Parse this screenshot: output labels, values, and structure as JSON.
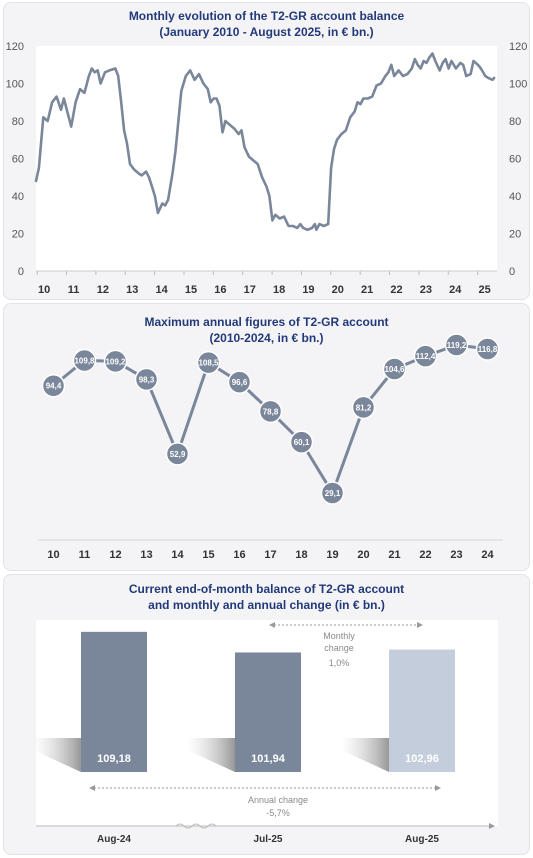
{
  "charts": {
    "monthly": {
      "title_line1": "Monthly evolution of the T2-GR account balance",
      "title_line2": "(January 2010 - August 2025,  in € bn.)"
    },
    "annual": {
      "title_line1": "Maximum annual figures of T2-GR account",
      "title_line2": "(2010-2024,  in € bn.)"
    },
    "current": {
      "title_line1": "Current end-of-month balance of T2-GR account",
      "title_line2": "and monthly and annual change (in € bn.)",
      "monthly_change_label_1": "Monthly",
      "monthly_change_label_2": "change",
      "monthly_change_value": "1,0%",
      "annual_change_label": "Annual change",
      "annual_change_value": "-5,7%"
    }
  },
  "colors": {
    "line": "#7a8699",
    "bar_dark": "#7a8699",
    "bar_light": "#c4cddc",
    "title": "#233a7a",
    "axis_text": "#555555"
  },
  "chart_data": [
    {
      "type": "line",
      "title": "Monthly evolution of the T2-GR account balance (January 2010 - August 2025,  in € bn.)",
      "y_ticks": [
        "0",
        "20",
        "40",
        "60",
        "80",
        "100",
        "120"
      ],
      "x_tick_labels": [
        "10",
        "11",
        "12",
        "13",
        "14",
        "15",
        "16",
        "17",
        "18",
        "19",
        "20",
        "21",
        "22",
        "23",
        "24",
        "25"
      ],
      "ylim": [
        0,
        120
      ],
      "x_unit": "year (2010 = 10)",
      "points": [
        [
          10.0,
          48
        ],
        [
          10.1,
          55
        ],
        [
          10.25,
          82
        ],
        [
          10.4,
          80
        ],
        [
          10.55,
          90
        ],
        [
          10.7,
          93
        ],
        [
          10.85,
          86
        ],
        [
          10.95,
          92
        ],
        [
          11.05,
          86
        ],
        [
          11.2,
          77
        ],
        [
          11.35,
          90
        ],
        [
          11.5,
          97
        ],
        [
          11.65,
          95
        ],
        [
          11.8,
          104
        ],
        [
          11.9,
          108
        ],
        [
          12.0,
          106
        ],
        [
          12.1,
          107
        ],
        [
          12.2,
          100
        ],
        [
          12.35,
          106
        ],
        [
          12.5,
          107
        ],
        [
          12.7,
          108
        ],
        [
          12.8,
          104
        ],
        [
          12.9,
          90
        ],
        [
          13.0,
          75
        ],
        [
          13.1,
          68
        ],
        [
          13.2,
          57
        ],
        [
          13.35,
          54
        ],
        [
          13.5,
          52
        ],
        [
          13.6,
          51
        ],
        [
          13.75,
          53
        ],
        [
          13.85,
          50
        ],
        [
          13.95,
          45
        ],
        [
          14.05,
          40
        ],
        [
          14.15,
          31
        ],
        [
          14.3,
          36
        ],
        [
          14.4,
          35
        ],
        [
          14.5,
          38
        ],
        [
          14.65,
          52
        ],
        [
          14.75,
          64
        ],
        [
          14.85,
          80
        ],
        [
          14.95,
          96
        ],
        [
          15.1,
          104
        ],
        [
          15.25,
          107
        ],
        [
          15.4,
          102
        ],
        [
          15.55,
          105
        ],
        [
          15.7,
          100
        ],
        [
          15.85,
          97
        ],
        [
          15.95,
          90
        ],
        [
          16.05,
          92
        ],
        [
          16.15,
          92
        ],
        [
          16.25,
          88
        ],
        [
          16.35,
          74
        ],
        [
          16.45,
          80
        ],
        [
          16.6,
          78
        ],
        [
          16.75,
          76
        ],
        [
          16.9,
          73
        ],
        [
          17.0,
          75
        ],
        [
          17.1,
          66
        ],
        [
          17.25,
          61
        ],
        [
          17.4,
          59
        ],
        [
          17.55,
          57
        ],
        [
          17.7,
          50
        ],
        [
          17.85,
          45
        ],
        [
          17.95,
          40
        ],
        [
          18.05,
          27
        ],
        [
          18.15,
          30
        ],
        [
          18.3,
          28
        ],
        [
          18.45,
          29
        ],
        [
          18.6,
          24
        ],
        [
          18.75,
          24
        ],
        [
          18.9,
          23
        ],
        [
          19.0,
          25
        ],
        [
          19.1,
          23
        ],
        [
          19.25,
          22
        ],
        [
          19.4,
          23
        ],
        [
          19.5,
          25
        ],
        [
          19.55,
          22
        ],
        [
          19.65,
          25
        ],
        [
          19.8,
          24
        ],
        [
          19.95,
          25
        ],
        [
          20.05,
          55
        ],
        [
          20.15,
          65
        ],
        [
          20.25,
          70
        ],
        [
          20.4,
          73
        ],
        [
          20.55,
          75
        ],
        [
          20.7,
          82
        ],
        [
          20.85,
          85
        ],
        [
          20.95,
          90
        ],
        [
          21.05,
          89
        ],
        [
          21.15,
          92
        ],
        [
          21.3,
          92
        ],
        [
          21.45,
          93
        ],
        [
          21.6,
          99
        ],
        [
          21.75,
          100
        ],
        [
          21.9,
          104
        ],
        [
          22.0,
          106
        ],
        [
          22.1,
          110
        ],
        [
          22.2,
          104
        ],
        [
          22.35,
          107
        ],
        [
          22.5,
          104
        ],
        [
          22.65,
          105
        ],
        [
          22.8,
          108
        ],
        [
          22.9,
          113
        ],
        [
          23.0,
          110
        ],
        [
          23.1,
          108
        ],
        [
          23.2,
          112
        ],
        [
          23.3,
          111
        ],
        [
          23.4,
          114
        ],
        [
          23.5,
          116
        ],
        [
          23.6,
          112
        ],
        [
          23.75,
          107
        ],
        [
          23.85,
          111
        ],
        [
          23.95,
          113
        ],
        [
          24.05,
          108
        ],
        [
          24.15,
          112
        ],
        [
          24.3,
          108
        ],
        [
          24.45,
          111
        ],
        [
          24.55,
          110
        ],
        [
          24.65,
          104
        ],
        [
          24.8,
          105
        ],
        [
          24.9,
          112
        ],
        [
          25.05,
          110
        ],
        [
          25.15,
          108
        ],
        [
          25.3,
          104
        ],
        [
          25.4,
          103
        ],
        [
          25.55,
          102
        ],
        [
          25.6,
          103
        ]
      ]
    },
    {
      "type": "line",
      "title": "Maximum annual figures of T2-GR account (2010-2024,  in € bn.)",
      "categories": [
        "10",
        "11",
        "12",
        "13",
        "14",
        "15",
        "16",
        "17",
        "18",
        "19",
        "20",
        "21",
        "22",
        "23",
        "24"
      ],
      "values": [
        94.4,
        109.8,
        109.2,
        98.3,
        52.9,
        108.5,
        96.6,
        78.8,
        60.1,
        29.1,
        81.2,
        104.6,
        112.4,
        119.2,
        116.8
      ],
      "data_labels": [
        "94,4",
        "109,8",
        "109,2",
        "98,3",
        "52,9",
        "108,5",
        "96,6",
        "78,8",
        "60,1",
        "29,1",
        "81,2",
        "104,6",
        "112,4",
        "119,2",
        "116,8"
      ]
    },
    {
      "type": "bar",
      "title": "Current end-of-month balance of T2-GR account and monthly and annual change (in € bn.)",
      "categories": [
        "Aug-24",
        "Jul-25",
        "Aug-25"
      ],
      "values": [
        109.18,
        101.94,
        102.96
      ],
      "data_labels": [
        "109,18",
        "101,94",
        "102,96"
      ],
      "monthly_change": "1,0%",
      "annual_change": "-5,7%"
    }
  ]
}
